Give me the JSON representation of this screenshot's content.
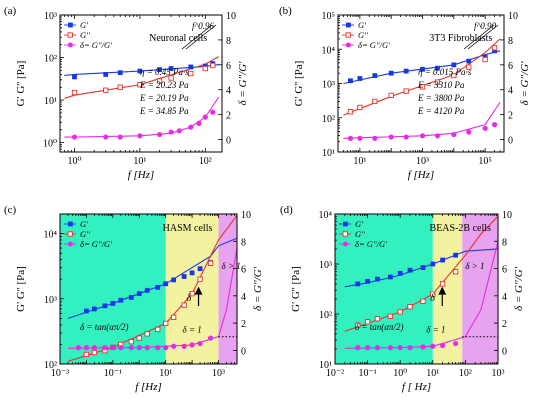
{
  "figure": {
    "panels": [
      "(a)",
      "(b)",
      "(c)",
      "(d)"
    ]
  },
  "colors": {
    "g_prime": "#1a37e6",
    "g_double_prime": "#e0352b",
    "delta": "#e62ce6",
    "zone_solid": "#33f0c0",
    "zone_transition": "#f2f2a0",
    "zone_fluid": "#e7a3ef",
    "fit_g_prime": "#1a37e6",
    "fit_g_double_prime": "#e0352b",
    "fit_delta": "#e62ce6"
  },
  "chart_data": [
    {
      "panel": "(a)",
      "type": "scatter",
      "title": "Neuronal cells",
      "xlabel": "f [Hz]",
      "ylabel_left": "G'  G'' [Pa]",
      "ylabel_right": "δ = G''/G'",
      "x_scale": "log",
      "y_scale": "log",
      "xlim": [
        0.6,
        180
      ],
      "ylim": [
        0.6,
        1000
      ],
      "y2lim": [
        -1,
        10
      ],
      "x_ticks": [
        1,
        10,
        100
      ],
      "x_tick_labels": [
        "10⁰",
        "10¹",
        "10²"
      ],
      "y_ticks": [
        1,
        10,
        100,
        1000
      ],
      "y_tick_labels": [
        "10⁰",
        "10¹",
        "10²",
        "10³"
      ],
      "y2_ticks": [
        0,
        2,
        4,
        6,
        8,
        10
      ],
      "y2_tick_labels": [
        "0",
        "2",
        "4",
        "6",
        "8",
        "10"
      ],
      "legend": {
        "position": "top-left",
        "entries": [
          "G'",
          "G''",
          "δ= G''/G'"
        ]
      },
      "slope_label": "f^0.96",
      "annotations": [
        "η = 0.45 Pa·s",
        "E = 20.23 Pa",
        "E = 20.19 Pa",
        "E = 34.85 Pa"
      ],
      "series": [
        {
          "name": "G'",
          "marker": "square-filled",
          "x": [
            1,
            3,
            5,
            10,
            20,
            30,
            60,
            100,
            130
          ],
          "y": [
            35,
            40,
            44,
            48,
            52,
            55,
            60,
            63,
            72
          ]
        },
        {
          "name": "G''",
          "marker": "square-open",
          "x": [
            1,
            3,
            5,
            10,
            20,
            30,
            60,
            100,
            130
          ],
          "y": [
            15,
            17,
            20,
            23,
            28,
            33,
            42,
            55,
            65
          ]
        },
        {
          "name": "δ= G''/G'",
          "marker": "circle-filled",
          "axis": "right",
          "x": [
            1,
            3,
            5,
            10,
            20,
            30,
            40,
            60,
            80,
            100,
            130
          ],
          "y": [
            0.2,
            0.2,
            0.2,
            0.3,
            0.4,
            0.6,
            0.7,
            1.0,
            1.3,
            1.8,
            2.2
          ]
        }
      ],
      "fits": [
        {
          "name": "G' fit",
          "x": [
            0.7,
            1,
            10,
            100,
            160
          ],
          "y": [
            38,
            40,
            48,
            62,
            68
          ]
        },
        {
          "name": "G'' fit",
          "x": [
            0.7,
            1,
            10,
            100,
            160
          ],
          "y": [
            11,
            13,
            23,
            70,
            105
          ]
        },
        {
          "name": "δ fit",
          "axis": "right",
          "x": [
            0.7,
            1,
            10,
            30,
            60,
            100,
            160
          ],
          "y": [
            0.2,
            0.2,
            0.3,
            0.5,
            1.0,
            1.8,
            3.4
          ]
        }
      ]
    },
    {
      "panel": "(b)",
      "type": "scatter",
      "title": "3T3 Fibroblasts",
      "xlabel": "f [Hz]",
      "ylabel_left": "G'  G'' [Pa]",
      "ylabel_right": "δ = G''/G'",
      "x_scale": "log",
      "y_scale": "log",
      "xlim": [
        2,
        400000
      ],
      "ylim": [
        10,
        100000
      ],
      "y2lim": [
        -1,
        10
      ],
      "x_ticks": [
        10,
        1000,
        100000
      ],
      "x_tick_labels": [
        "10¹",
        "10³",
        "10⁵"
      ],
      "y_ticks": [
        10,
        100,
        1000,
        10000,
        100000
      ],
      "y_tick_labels": [
        "10¹",
        "10²",
        "10³",
        "10⁴",
        "10⁵"
      ],
      "y2_ticks": [
        0,
        2,
        4,
        6,
        8,
        10
      ],
      "y2_tick_labels": [
        "0",
        "2",
        "4",
        "6",
        "8",
        "10"
      ],
      "legend": {
        "position": "top-left",
        "entries": [
          "G'",
          "G''",
          "δ= G''/G'"
        ]
      },
      "slope_label": "f^0.90",
      "annotations": [
        "η = 0.015 Pa·s",
        "E = 3310 Pa",
        "E = 3800 Pa",
        "E = 4120 Pa"
      ],
      "series": [
        {
          "name": "G'",
          "marker": "square-filled",
          "x": [
            5,
            10,
            30,
            100,
            300,
            1000,
            3000,
            10000,
            30000,
            100000,
            200000
          ],
          "y": [
            1200,
            1400,
            1700,
            2000,
            2300,
            2600,
            2800,
            3500,
            4500,
            6000,
            9000
          ]
        },
        {
          "name": "G''",
          "marker": "square-open",
          "x": [
            5,
            10,
            30,
            100,
            300,
            1000,
            3000,
            10000,
            30000,
            100000,
            200000
          ],
          "y": [
            150,
            200,
            300,
            450,
            600,
            800,
            1100,
            1700,
            3000,
            5000,
            11000
          ]
        },
        {
          "name": "δ= G''/G'",
          "marker": "circle-filled",
          "axis": "right",
          "x": [
            5,
            10,
            30,
            100,
            300,
            1000,
            3000,
            10000,
            30000,
            100000,
            200000
          ],
          "y": [
            0.1,
            0.1,
            0.1,
            0.2,
            0.2,
            0.3,
            0.3,
            0.4,
            0.6,
            0.9,
            1.2
          ]
        }
      ],
      "fits": [
        {
          "name": "G' fit",
          "x": [
            3,
            100,
            10000,
            100000,
            300000
          ],
          "y": [
            1000,
            2000,
            3500,
            7000,
            9000
          ]
        },
        {
          "name": "G'' fit",
          "x": [
            3,
            100,
            10000,
            100000,
            300000
          ],
          "y": [
            120,
            420,
            1800,
            8000,
            20000
          ]
        },
        {
          "name": "δ fit",
          "axis": "right",
          "x": [
            3,
            1000,
            10000,
            100000,
            300000
          ],
          "y": [
            0.1,
            0.3,
            0.5,
            1.2,
            3.0
          ]
        }
      ]
    },
    {
      "panel": "(c)",
      "type": "scatter",
      "title": "HASM cells",
      "xlabel": "f [Hz]",
      "ylabel_left": "G'  G'' [Pa]",
      "ylabel_right": "δ = G''/G'",
      "x_scale": "log",
      "y_scale": "log",
      "xlim": [
        0.001,
        5000
      ],
      "ylim": [
        100,
        20000
      ],
      "y2lim": [
        -1,
        10
      ],
      "x_ticks": [
        0.001,
        0.1,
        10,
        1000
      ],
      "x_tick_labels": [
        "10⁻³",
        "10⁻¹",
        "10¹",
        "10³"
      ],
      "y_ticks": [
        100,
        1000,
        10000
      ],
      "y_tick_labels": [
        "10²",
        "10³",
        "10⁴"
      ],
      "y2_ticks": [
        0,
        2,
        4,
        6,
        8,
        10
      ],
      "y2_tick_labels": [
        "0",
        "2",
        "4",
        "6",
        "8",
        "10"
      ],
      "legend": {
        "position": "top-left",
        "entries": [
          "G'",
          "G''",
          "δ= G''/G'"
        ]
      },
      "zones": [
        {
          "from": 0.001,
          "to": 10,
          "color_key": "zone_solid"
        },
        {
          "from": 10,
          "to": 1000,
          "color_key": "zone_transition"
        },
        {
          "from": 1000,
          "to": 5000,
          "color_key": "zone_fluid"
        }
      ],
      "annotations": [
        "δ = tan(απ/2)",
        "δ = 1",
        "δ > 1",
        "δ"
      ],
      "series": [
        {
          "name": "G'",
          "marker": "square-filled",
          "x": [
            0.01,
            0.02,
            0.05,
            0.1,
            0.2,
            0.5,
            1,
            2,
            5,
            10,
            20,
            50,
            100,
            200,
            500
          ],
          "y": [
            650,
            700,
            780,
            850,
            950,
            1050,
            1200,
            1350,
            1500,
            1700,
            1950,
            2200,
            2500,
            2900,
            3600
          ]
        },
        {
          "name": "G''",
          "marker": "square-open",
          "x": [
            0.01,
            0.02,
            0.05,
            0.1,
            0.2,
            0.5,
            1,
            2,
            5,
            10,
            20,
            50,
            100,
            200,
            500
          ],
          "y": [
            140,
            150,
            160,
            180,
            200,
            220,
            250,
            290,
            340,
            420,
            520,
            800,
            1200,
            2000,
            3500
          ]
        },
        {
          "name": "δ= G''/G'",
          "marker": "circle-filled",
          "axis": "right",
          "x": [
            0.005,
            0.01,
            0.02,
            0.05,
            0.1,
            0.2,
            0.5,
            1,
            2,
            5,
            10,
            20,
            50,
            100,
            200,
            500
          ],
          "y": [
            0.2,
            0.2,
            0.2,
            0.2,
            0.2,
            0.2,
            0.2,
            0.2,
            0.2,
            0.2,
            0.2,
            0.3,
            0.3,
            0.4,
            0.5,
            0.9
          ]
        }
      ],
      "fits": [
        {
          "name": "G' fit",
          "x": [
            0.002,
            0.1,
            10,
            500,
            1000,
            5000
          ],
          "y": [
            500,
            850,
            1700,
            4500,
            6500,
            8500
          ]
        },
        {
          "name": "G'' fit",
          "x": [
            0.002,
            0.1,
            10,
            100,
            1000,
            5000
          ],
          "y": [
            110,
            180,
            420,
            1200,
            8000,
            19000
          ]
        },
        {
          "name": "δ fit",
          "axis": "right",
          "x": [
            0.002,
            1,
            100,
            1000,
            2000,
            5000
          ],
          "y": [
            0.15,
            0.2,
            0.4,
            1.0,
            3.0,
            7.5
          ]
        },
        {
          "name": "δ = 1",
          "axis": "right",
          "style": "dotted",
          "x": [
            1000,
            5000
          ],
          "y": [
            1.0,
            1.0
          ]
        }
      ]
    },
    {
      "panel": "(d)",
      "type": "scatter",
      "title": "BEAS-2B cells",
      "xlabel": "f [ Hz]",
      "ylabel_left": "G'  G'' [Pa]",
      "ylabel_right": "δ = G''/G'",
      "x_scale": "log",
      "y_scale": "log",
      "xlim": [
        0.01,
        1000
      ],
      "ylim": [
        10,
        10000
      ],
      "y2lim": [
        -1,
        10
      ],
      "x_ticks": [
        0.01,
        0.1,
        1,
        10,
        100,
        1000
      ],
      "x_tick_labels": [
        "10⁻²",
        "10⁻¹",
        "10⁰",
        "10¹",
        "10²",
        "10³"
      ],
      "y_ticks": [
        10,
        100,
        1000,
        10000
      ],
      "y_tick_labels": [
        "10¹",
        "10²",
        "10³",
        "10⁴"
      ],
      "y2_ticks": [
        0,
        2,
        4,
        6,
        8,
        10
      ],
      "y2_tick_labels": [
        "0",
        "2",
        "4",
        "6",
        "8",
        "10"
      ],
      "legend": {
        "position": "top-left",
        "entries": [
          "G'",
          "G''",
          "δ= G''/G'"
        ]
      },
      "zones": [
        {
          "from": 0.01,
          "to": 10,
          "color_key": "zone_solid"
        },
        {
          "from": 10,
          "to": 80,
          "color_key": "zone_transition"
        },
        {
          "from": 80,
          "to": 1000,
          "color_key": "zone_fluid"
        }
      ],
      "annotations": [
        "δ = tan(απ/2)",
        "δ = 1",
        "δ > 1",
        "δ"
      ],
      "series": [
        {
          "name": "G'",
          "marker": "square-filled",
          "x": [
            0.05,
            0.1,
            0.2,
            0.5,
            1,
            2,
            5,
            10,
            20,
            50
          ],
          "y": [
            400,
            450,
            500,
            550,
            650,
            750,
            850,
            1000,
            1200,
            1500
          ]
        },
        {
          "name": "G''",
          "marker": "square-open",
          "x": [
            0.05,
            0.1,
            0.2,
            0.5,
            1,
            2,
            5,
            10,
            20,
            50
          ],
          "y": [
            60,
            70,
            80,
            90,
            110,
            140,
            180,
            250,
            400,
            700
          ]
        },
        {
          "name": "δ= G''/G'",
          "marker": "circle-filled",
          "axis": "right",
          "x": [
            0.05,
            0.1,
            0.2,
            0.5,
            1,
            2,
            5,
            10,
            20,
            50
          ],
          "y": [
            0.2,
            0.2,
            0.2,
            0.2,
            0.2,
            0.2,
            0.25,
            0.3,
            0.35,
            0.5
          ]
        }
      ],
      "fits": [
        {
          "name": "G' fit",
          "x": [
            0.02,
            0.1,
            1,
            10,
            100,
            1000
          ],
          "y": [
            350,
            420,
            600,
            1000,
            1800,
            2000
          ]
        },
        {
          "name": "G'' fit",
          "x": [
            0.02,
            0.1,
            1,
            10,
            100,
            300,
            1000
          ],
          "y": [
            45,
            65,
            110,
            250,
            1500,
            4000,
            9000
          ]
        },
        {
          "name": "δ fit",
          "axis": "right",
          "x": [
            0.02,
            1,
            10,
            100,
            300,
            1000
          ],
          "y": [
            0.15,
            0.2,
            0.3,
            1.0,
            3.0,
            8.0
          ]
        },
        {
          "name": "δ = 1",
          "axis": "right",
          "style": "dotted",
          "x": [
            80,
            1000
          ],
          "y": [
            1.0,
            1.0
          ]
        }
      ]
    }
  ]
}
